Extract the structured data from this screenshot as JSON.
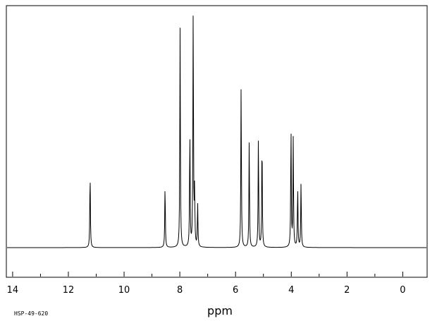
{
  "chart_data": {
    "type": "line",
    "title": "",
    "xlabel": "ppm",
    "ylabel": "",
    "xlim": [
      14.2,
      -0.85
    ],
    "x_reversed": true,
    "ylim": [
      -0.12,
      1.0
    ],
    "x_ticks": [
      14,
      12,
      10,
      8,
      6,
      4,
      2,
      0
    ],
    "x_tick_labels": [
      "14",
      "12",
      "10",
      "8",
      "6",
      "4",
      "2",
      "0"
    ],
    "minor_tick_step": 1,
    "grid": false,
    "legend": "none",
    "line_color": "#000000",
    "baseline": 0,
    "peaks": [
      {
        "ppm": 11.22,
        "height": 0.31
      },
      {
        "ppm": 8.53,
        "height": 0.26
      },
      {
        "ppm": 7.99,
        "height": 0.91
      },
      {
        "ppm": 7.64,
        "height": 0.48
      },
      {
        "ppm": 7.52,
        "height": 0.98
      },
      {
        "ppm": 7.47,
        "height": 0.22
      },
      {
        "ppm": 7.36,
        "height": 0.18
      },
      {
        "ppm": 5.8,
        "height": 0.68
      },
      {
        "ppm": 5.51,
        "height": 0.44
      },
      {
        "ppm": 5.18,
        "height": 0.46
      },
      {
        "ppm": 5.05,
        "height": 0.45
      },
      {
        "ppm": 4.01,
        "height": 0.5
      },
      {
        "ppm": 3.93,
        "height": 0.45
      },
      {
        "ppm": 3.77,
        "height": 0.25
      },
      {
        "ppm": 3.65,
        "height": 0.27
      }
    ]
  },
  "footer": {
    "code": "HSP-49-620"
  }
}
